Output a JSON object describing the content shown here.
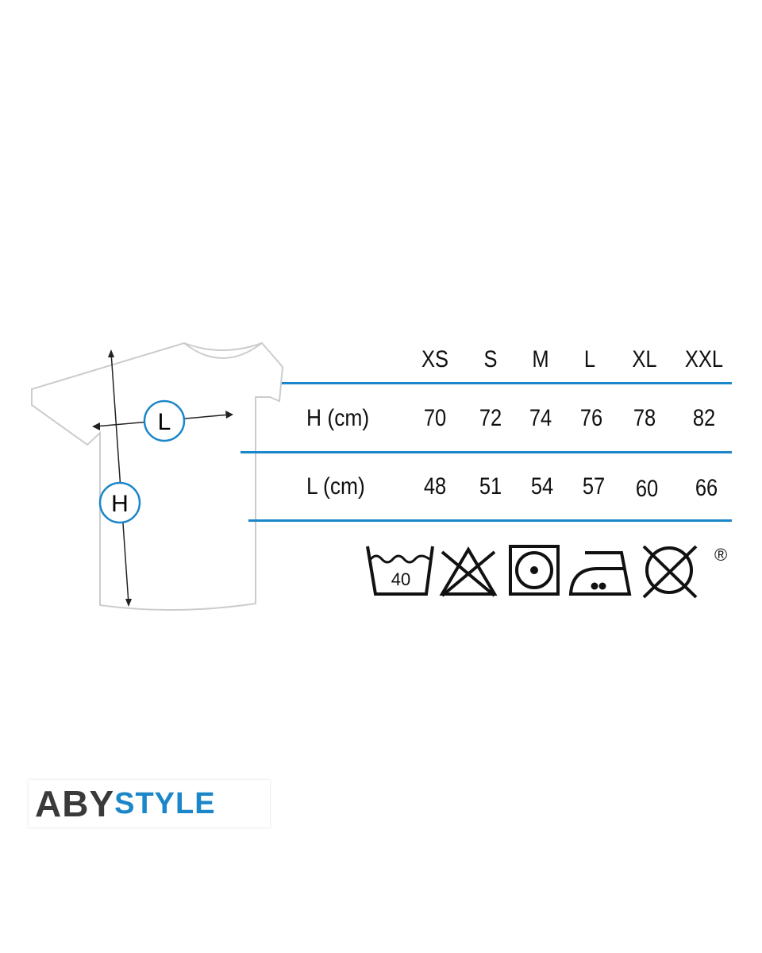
{
  "sizes": [
    "XS",
    "S",
    "M",
    "L",
    "XL",
    "XXL"
  ],
  "rows": [
    {
      "label": "H (cm)",
      "values": [
        "70",
        "72",
        "74",
        "76",
        "78",
        "82"
      ]
    },
    {
      "label": "L (cm)",
      "values": [
        "48",
        "51",
        "54",
        "57",
        "60",
        "66"
      ]
    }
  ],
  "diagram": {
    "width_marker": "L",
    "height_marker": "H"
  },
  "care_icons": [
    {
      "name": "wash-40-icon",
      "label": "40"
    },
    {
      "name": "no-bleach-icon"
    },
    {
      "name": "tumble-dry-icon"
    },
    {
      "name": "iron-medium-icon"
    },
    {
      "name": "no-dry-clean-icon"
    }
  ],
  "registered_mark": "®",
  "logo": {
    "part1": "ABY",
    "part2": "STYLE"
  },
  "colors": {
    "accent": "#1b86c8",
    "text": "#111111",
    "logo_dark": "#3a3a3a"
  }
}
